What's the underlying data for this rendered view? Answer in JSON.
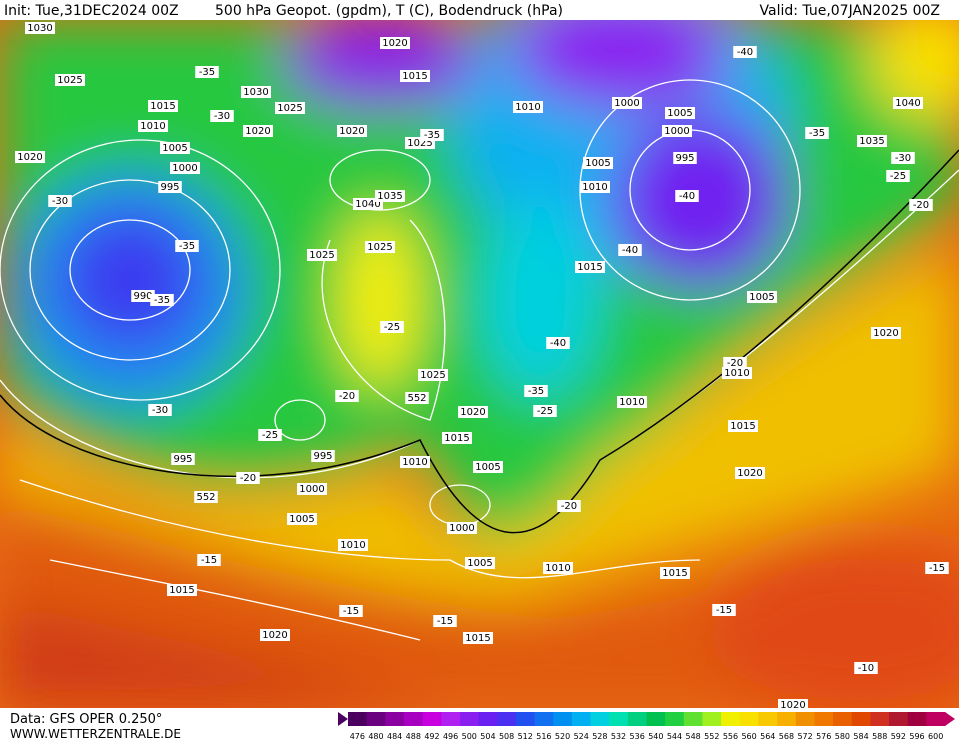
{
  "header": {
    "init": "Init: Tue,31DEC2024 00Z",
    "title": "500 hPa Geopot. (gpdm), T (C), Bodendruck (hPa)",
    "valid": "Valid: Tue,07JAN2025 00Z"
  },
  "footer": {
    "data": "Data: GFS OPER 0.250°",
    "site": "WWW.WETTERZENTRALE.DE"
  },
  "colorbar": {
    "labels": [
      476,
      480,
      484,
      488,
      492,
      496,
      500,
      504,
      508,
      512,
      516,
      520,
      524,
      528,
      532,
      536,
      540,
      544,
      548,
      552,
      556,
      560,
      564,
      568,
      572,
      576,
      580,
      584,
      588,
      592,
      596,
      600
    ],
    "colors": [
      "#4b0060",
      "#6a0080",
      "#8a00a0",
      "#a800c0",
      "#c800e0",
      "#b020f0",
      "#8a20f0",
      "#6a20f0",
      "#4a30f0",
      "#2050f0",
      "#1070f0",
      "#0090f0",
      "#00b0f0",
      "#00d0e0",
      "#00e0b0",
      "#00d080",
      "#00c050",
      "#20d040",
      "#60e030",
      "#a0f020",
      "#f0f000",
      "#f8e000",
      "#f8c800",
      "#f8b000",
      "#f09000",
      "#f07800",
      "#e86000",
      "#e04800",
      "#d03020",
      "#b01830",
      "#a00040",
      "#c00060"
    ]
  },
  "map_labels": [
    "1030",
    "1025",
    "1015",
    "1010",
    "1005",
    "1000",
    "995",
    "990",
    "1020",
    "1030",
    "1025",
    "1020",
    "1020",
    "1020",
    "1015",
    "1025",
    "1040",
    "1035",
    "1025",
    "1025",
    "1025",
    "1020",
    "1015",
    "1010",
    "1005",
    "1000",
    "995",
    "995",
    "1005",
    "1010",
    "1015",
    "1020",
    "1000",
    "1005",
    "1010",
    "1015",
    "1015",
    "1010",
    "1000",
    "1005",
    "1000",
    "995",
    "1005",
    "1010",
    "1015",
    "1005",
    "1010",
    "1010",
    "1015",
    "1020",
    "1040",
    "1035",
    "1020",
    "1020",
    "552",
    "552",
    "-35",
    "-30",
    "-35",
    "-30",
    "-35",
    "-35",
    "-25",
    "-30",
    "-25",
    "-20",
    "-20",
    "-15",
    "-15",
    "-15",
    "-40",
    "-35",
    "-25",
    "-20",
    "-40",
    "-40",
    "-40",
    "-35",
    "-30",
    "-25",
    "-20",
    "-15",
    "-15",
    "-10",
    "-20"
  ]
}
